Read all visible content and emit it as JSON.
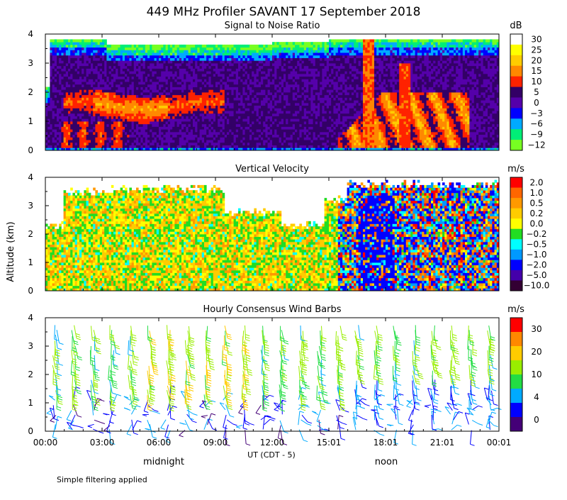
{
  "title": "449 MHz Profiler SAVANT 17 September 2018",
  "y_axis_label": "Altitude (km)",
  "x_axis_label": "UT (CDT - 5)",
  "time_markers": [
    "midnight",
    "noon"
  ],
  "footnote": "Simple filtering applied",
  "chart_data": [
    {
      "type": "heatmap",
      "title": "Signal to Noise Ratio",
      "unit": "dB",
      "colorbar_labels": [
        "30",
        "25",
        "20",
        "15",
        "10",
        "5",
        "0",
        "−3",
        "−6",
        "−9",
        "−12"
      ],
      "colorbar_colors": [
        "#ffffff",
        "#ffff00",
        "#ffcc00",
        "#ff8800",
        "#ff2200",
        "#330066",
        "#5500aa",
        "#0000ff",
        "#00aaff",
        "#00ee77",
        "#77ff22"
      ],
      "x_ticks": [
        "00:00",
        "03:00",
        "06:00",
        "09:00",
        "12:00",
        "15:01",
        "18:01",
        "21:01",
        "00:01"
      ],
      "y_ticks": [
        "0",
        "1",
        "2",
        "3",
        "4"
      ],
      "ylim": [
        0,
        4
      ],
      "xlim_hours": [
        0,
        24
      ]
    },
    {
      "type": "heatmap",
      "title": "Vertical Velocity",
      "unit": "m/s",
      "colorbar_labels": [
        "2.0",
        "1.0",
        "0.5",
        "0.2",
        "0.0",
        "−0.2",
        "−0.5",
        "−1.0",
        "−2.0",
        "−5.0",
        "−10.0"
      ],
      "colorbar_colors": [
        "#ff0000",
        "#ff6600",
        "#ff9900",
        "#ffcc00",
        "#ffff00",
        "#22dd22",
        "#00ffff",
        "#0099ff",
        "#0000ff",
        "#4400aa",
        "#330033"
      ],
      "x_ticks": [
        "00:00",
        "03:00",
        "06:00",
        "09:00",
        "12:00",
        "15:01",
        "18:01",
        "21:01",
        "00:01"
      ],
      "y_ticks": [
        "0",
        "1",
        "2",
        "3",
        "4"
      ],
      "ylim": [
        0,
        4
      ],
      "xlim_hours": [
        0,
        24
      ]
    },
    {
      "type": "scatter",
      "title": "Hourly Consensus Wind Barbs",
      "unit": "m/s",
      "colorbar_labels": [
        "30",
        "20",
        "10",
        "4",
        "0"
      ],
      "colorbar_colors": [
        "#ff0000",
        "#ff8800",
        "#ffcc00",
        "#99ee00",
        "#22dd44",
        "#00aaff",
        "#0000ff",
        "#440077"
      ],
      "x_ticks": [
        "00:00",
        "03:00",
        "06:00",
        "09:00",
        "12:00",
        "15:01",
        "18:01",
        "21:01",
        "00:01"
      ],
      "y_ticks": [
        "0",
        "1",
        "2",
        "3",
        "4"
      ],
      "ylim": [
        0,
        4
      ],
      "xlim_hours": [
        0,
        24
      ]
    }
  ]
}
